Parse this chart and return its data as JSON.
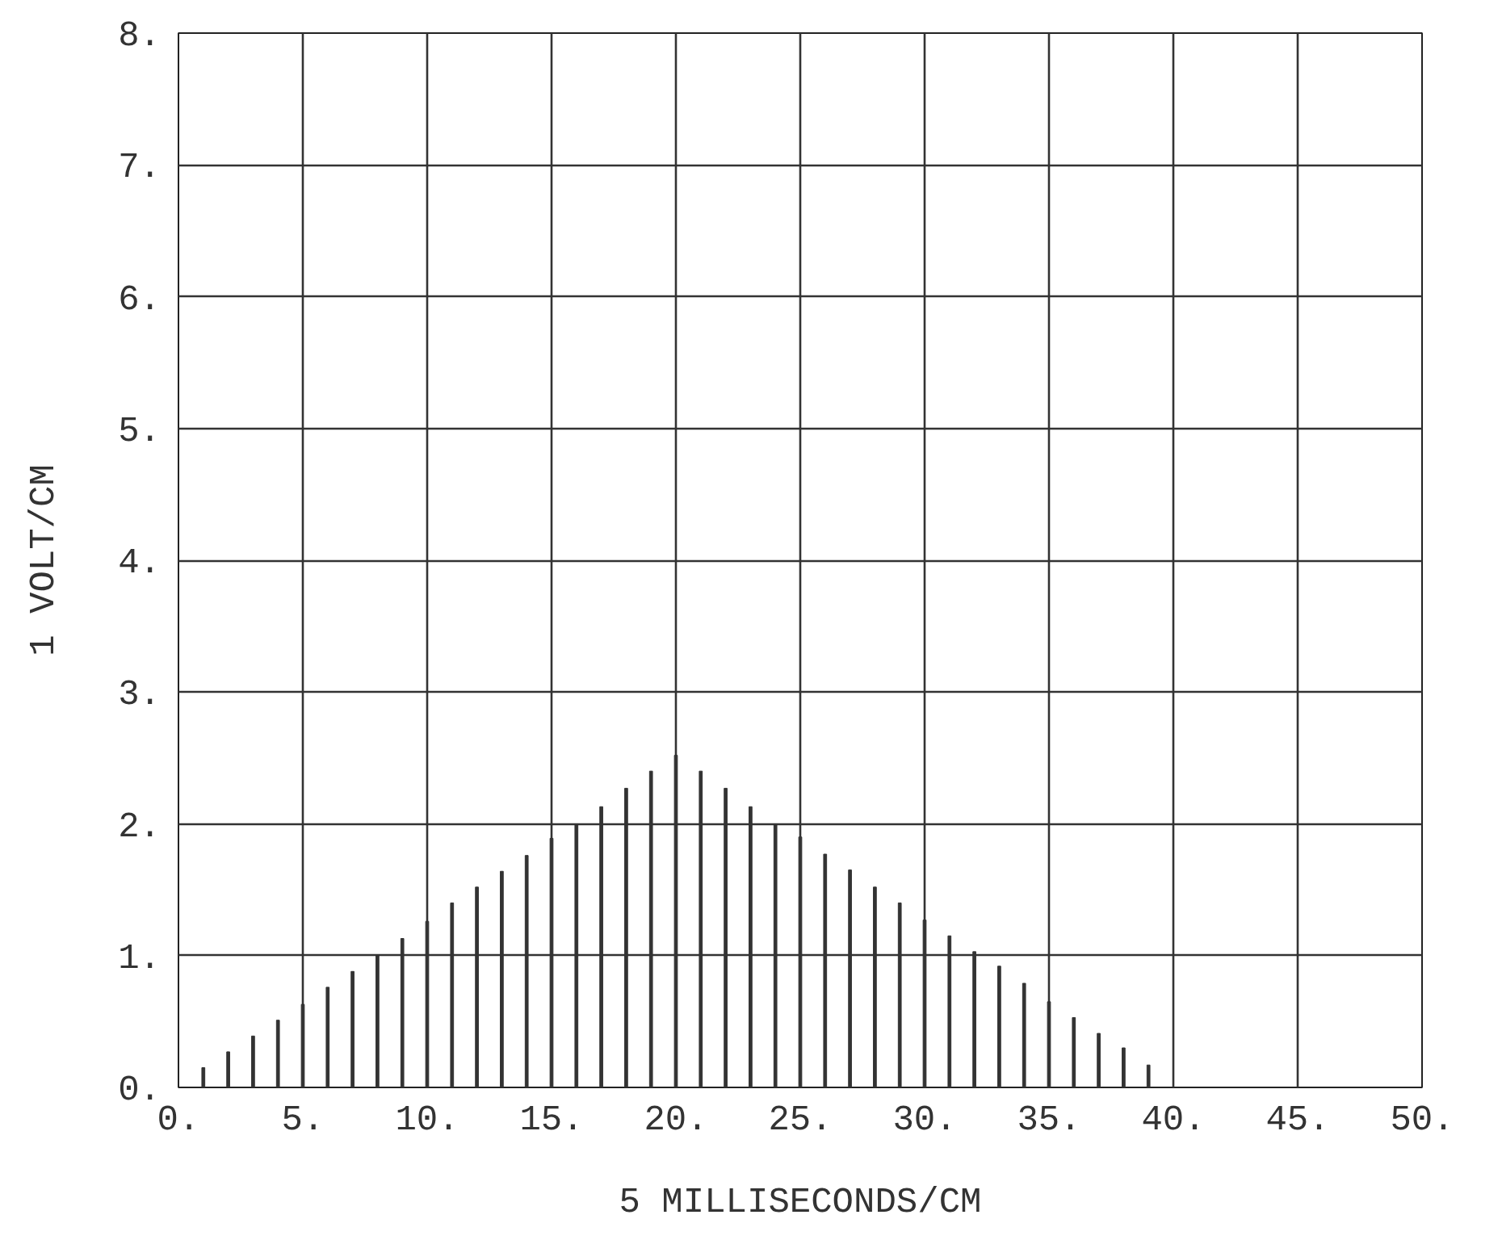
{
  "chart_data": {
    "type": "bar",
    "xlabel": "5 MILLISECONDS/CM",
    "ylabel": "1 VOLT/CM",
    "x": [
      1,
      2,
      3,
      4,
      5,
      6,
      7,
      8,
      9,
      10,
      11,
      12,
      13,
      14,
      15,
      16,
      17,
      18,
      19,
      20,
      21,
      22,
      23,
      24,
      25,
      26,
      27,
      28,
      29,
      30,
      31,
      32,
      33,
      34,
      35,
      36,
      37,
      38,
      39
    ],
    "series": [
      {
        "color": "#333333",
        "values": [
          0.15,
          0.27,
          0.39,
          0.51,
          0.63,
          0.76,
          0.88,
          1.0,
          1.13,
          1.26,
          1.4,
          1.52,
          1.64,
          1.76,
          1.89,
          2.0,
          2.13,
          2.27,
          2.4,
          2.52,
          2.4,
          2.27,
          2.13,
          2.0,
          1.9,
          1.77,
          1.65,
          1.52,
          1.4,
          1.27,
          1.15,
          1.03,
          0.92,
          0.79,
          0.65,
          0.53,
          0.41,
          0.3,
          0.17
        ]
      }
    ],
    "xlim": [
      0,
      50
    ],
    "ylim": [
      0,
      8
    ],
    "xticks": [
      {
        "value": 0,
        "label": "0."
      },
      {
        "value": 5,
        "label": "5."
      },
      {
        "value": 10,
        "label": "10."
      },
      {
        "value": 15,
        "label": "15."
      },
      {
        "value": 20,
        "label": "20."
      },
      {
        "value": 25,
        "label": "25."
      },
      {
        "value": 30,
        "label": "30."
      },
      {
        "value": 35,
        "label": "35."
      },
      {
        "value": 40,
        "label": "40."
      },
      {
        "value": 45,
        "label": "45."
      },
      {
        "value": 50,
        "label": "50."
      }
    ],
    "yticks": [
      {
        "value": 0,
        "label": "0."
      },
      {
        "value": 1,
        "label": "1."
      },
      {
        "value": 2,
        "label": "2."
      },
      {
        "value": 3,
        "label": "3."
      },
      {
        "value": 4,
        "label": "4."
      },
      {
        "value": 5,
        "label": "5."
      },
      {
        "value": 6,
        "label": "6."
      },
      {
        "value": 7,
        "label": "7."
      },
      {
        "value": 8,
        "label": "8."
      }
    ],
    "grid": true
  }
}
